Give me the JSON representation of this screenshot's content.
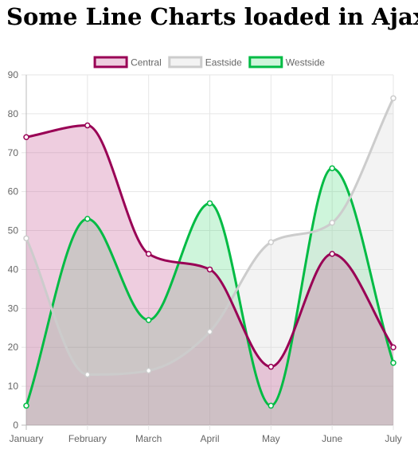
{
  "page": {
    "title": "Some Line Charts loaded in Ajax!"
  },
  "chart_data": {
    "type": "line",
    "categories": [
      "January",
      "February",
      "March",
      "April",
      "May",
      "June",
      "July"
    ],
    "ylim": [
      0,
      90
    ],
    "yticks": [
      0,
      10,
      20,
      30,
      40,
      50,
      60,
      70,
      80,
      90
    ],
    "grid": true,
    "legend": "top-center",
    "curve": "smooth",
    "filled": true,
    "series": [
      {
        "name": "Central",
        "values": [
          74,
          77,
          44,
          40,
          15,
          44,
          20
        ],
        "color": "#990055",
        "fill": "rgba(200, 90, 150, 0.30)"
      },
      {
        "name": "Eastside",
        "values": [
          48,
          13,
          14,
          24,
          47,
          52,
          84
        ],
        "color": "#cccccc",
        "fill": "rgba(215, 215, 215, 0.30)"
      },
      {
        "name": "Westside",
        "values": [
          5,
          53,
          27,
          57,
          5,
          66,
          16
        ],
        "color": "#00bb44",
        "fill": "rgba(60, 215, 110, 0.25)"
      }
    ]
  }
}
